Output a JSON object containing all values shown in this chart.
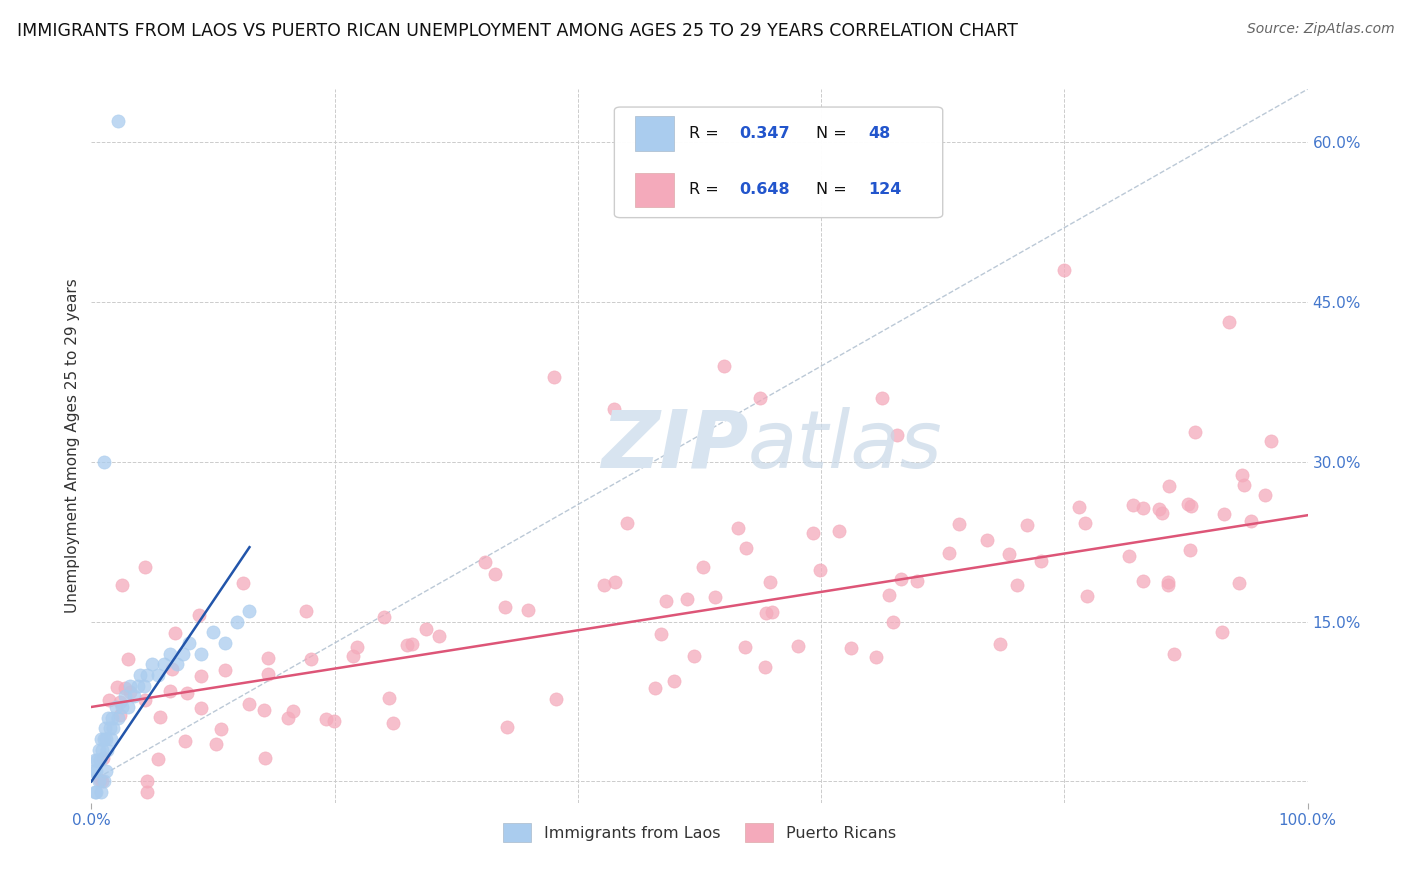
{
  "title": "IMMIGRANTS FROM LAOS VS PUERTO RICAN UNEMPLOYMENT AMONG AGES 25 TO 29 YEARS CORRELATION CHART",
  "source": "Source: ZipAtlas.com",
  "ylabel": "Unemployment Among Ages 25 to 29 years",
  "xlim": [
    0.0,
    1.0
  ],
  "ylim": [
    -0.02,
    0.65
  ],
  "color_blue": "#aaccee",
  "color_pink": "#f4aabb",
  "line_blue": "#2255aa",
  "line_pink": "#dd5577",
  "dash_color": "#aabbcc",
  "watermark_color": "#d8e4f0",
  "background": "#ffffff",
  "title_fontsize": 12.5,
  "source_fontsize": 10,
  "tick_color": "#4477cc",
  "grid_color": "#cccccc",
  "ylabel_color": "#333333",
  "blue_r": "0.347",
  "blue_n": "48",
  "pink_r": "0.648",
  "pink_n": "124",
  "legend_label_blue": "Immigrants from Laos",
  "legend_label_pink": "Puerto Ricans"
}
